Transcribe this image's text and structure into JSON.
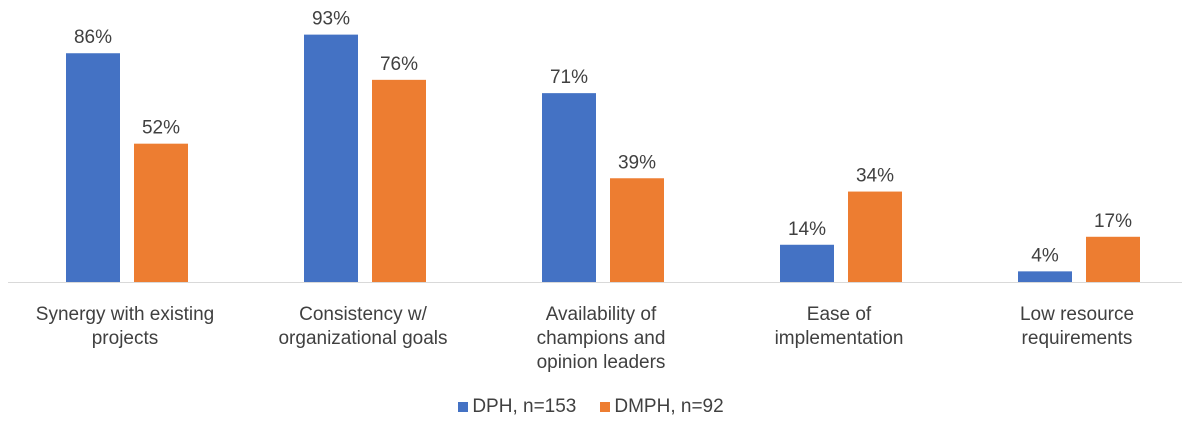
{
  "chart_data": {
    "type": "bar",
    "categories": [
      [
        "Synergy with existing",
        "projects"
      ],
      [
        "Consistency w/",
        "organizational goals"
      ],
      [
        "Availability of",
        "champions and",
        "opinion leaders"
      ],
      [
        "Ease of",
        "implementation"
      ],
      [
        "Low resource",
        "requirements"
      ]
    ],
    "series": [
      {
        "name": "DPH, n=153",
        "color": "#4472C4",
        "values": [
          86,
          93,
          71,
          14,
          4
        ],
        "labels": [
          "86%",
          "93%",
          "71%",
          "14%",
          "4%"
        ]
      },
      {
        "name": "DMPH, n=92",
        "color": "#ED7D31",
        "values": [
          52,
          76,
          39,
          34,
          17
        ],
        "labels": [
          "52%",
          "76%",
          "39%",
          "34%",
          "17%"
        ]
      }
    ],
    "ylim": [
      0,
      100
    ],
    "grid": false,
    "legend_position": "bottom"
  }
}
